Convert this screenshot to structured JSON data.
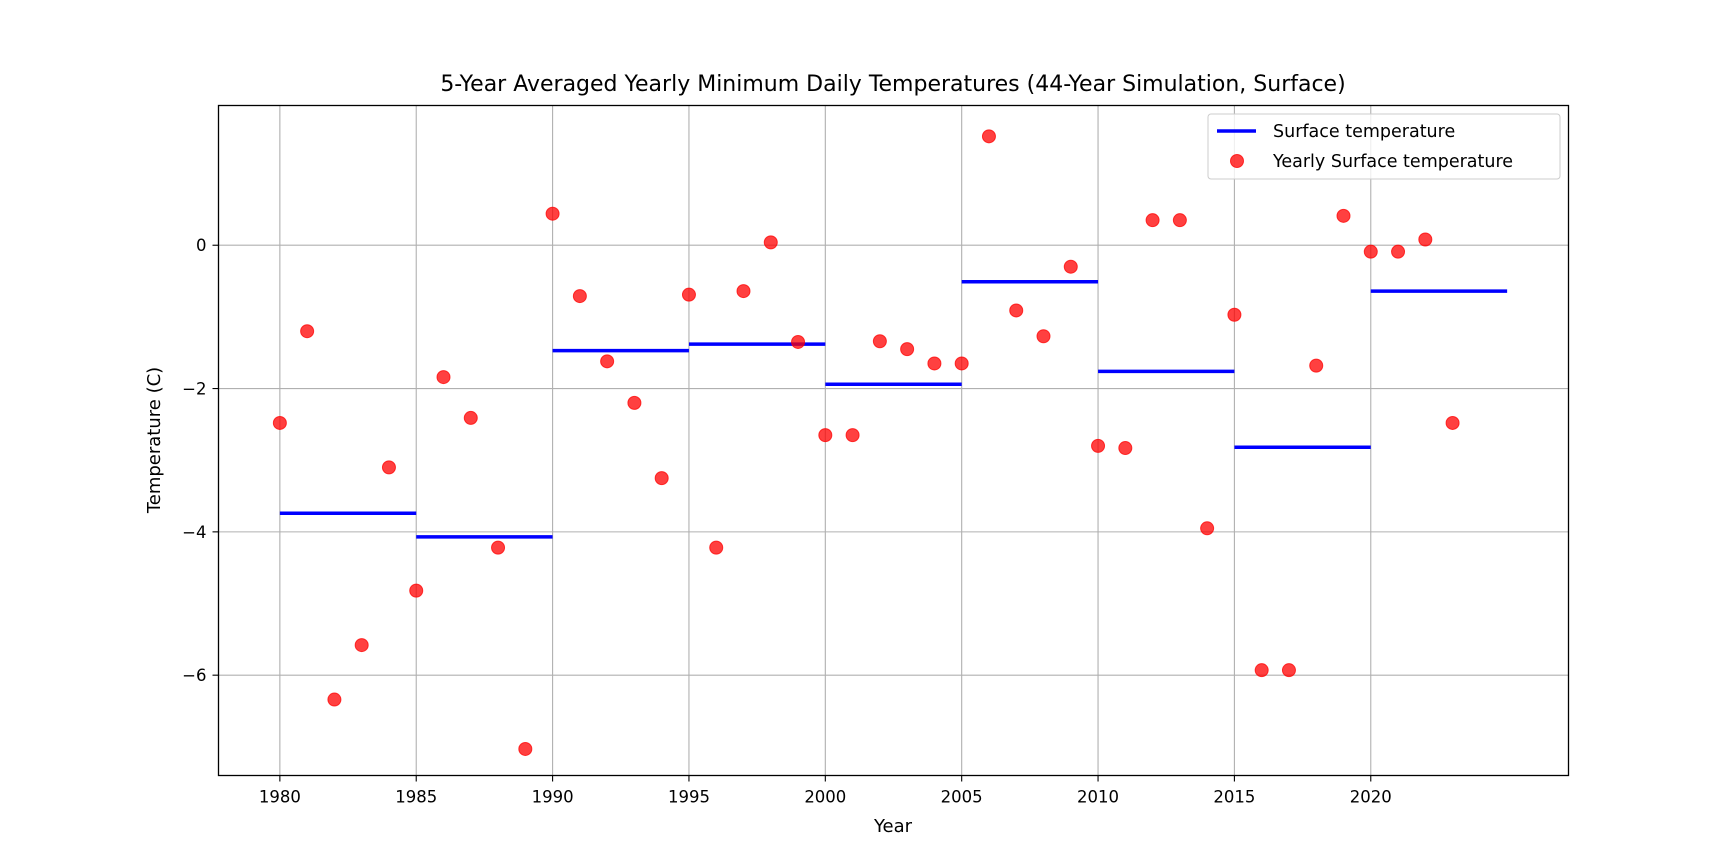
{
  "chart_data": {
    "type": "scatter",
    "title": "5-Year Averaged Yearly Minimum Daily Temperatures (44-Year Simulation, Surface)",
    "xlabel": "Year",
    "ylabel": "Temperature (C)",
    "xlim": [
      1977.75,
      2027.25
    ],
    "ylim": [
      -7.4,
      1.95
    ],
    "xticks": [
      1980,
      1985,
      1990,
      1995,
      2000,
      2005,
      2010,
      2015,
      2020
    ],
    "yticks": [
      0,
      -2,
      -4,
      -6
    ],
    "grid": true,
    "legend_position": "top-right",
    "series": [
      {
        "name": "Surface temperature",
        "kind": "step-line",
        "color": "#0000ff",
        "segments": [
          {
            "x0": 1980,
            "x1": 1985,
            "y": -3.74
          },
          {
            "x0": 1985,
            "x1": 1990,
            "y": -4.07
          },
          {
            "x0": 1990,
            "x1": 1995,
            "y": -1.47
          },
          {
            "x0": 1995,
            "x1": 2000,
            "y": -1.38
          },
          {
            "x0": 2000,
            "x1": 2005,
            "y": -1.94
          },
          {
            "x0": 2005,
            "x1": 2010,
            "y": -0.51
          },
          {
            "x0": 2010,
            "x1": 2015,
            "y": -1.76
          },
          {
            "x0": 2015,
            "x1": 2020,
            "y": -2.82
          },
          {
            "x0": 2020,
            "x1": 2025,
            "y": -0.64
          }
        ]
      },
      {
        "name": "Yearly Surface temperature",
        "kind": "scatter",
        "color": "#ff0000",
        "x": [
          1980,
          1981,
          1982,
          1983,
          1984,
          1985,
          1986,
          1987,
          1988,
          1989,
          1990,
          1991,
          1992,
          1993,
          1994,
          1995,
          1996,
          1997,
          1998,
          1999,
          2000,
          2001,
          2002,
          2003,
          2004,
          2005,
          2006,
          2007,
          2008,
          2009,
          2010,
          2011,
          2012,
          2013,
          2014,
          2015,
          2016,
          2017,
          2018,
          2019,
          2020,
          2021,
          2022,
          2023
        ],
        "y": [
          -2.48,
          -1.2,
          -6.34,
          -5.58,
          -3.1,
          -4.82,
          -1.84,
          -2.41,
          -4.22,
          -7.03,
          0.44,
          -0.71,
          -1.62,
          -2.2,
          -3.25,
          -0.69,
          -4.22,
          -0.64,
          0.04,
          -1.35,
          -2.65,
          -2.65,
          -1.34,
          -1.45,
          -1.65,
          -1.65,
          1.52,
          -0.91,
          -1.27,
          -0.3,
          -2.8,
          -2.83,
          0.35,
          0.35,
          -3.95,
          -0.97,
          -5.93,
          -5.93,
          -1.68,
          0.41,
          -0.09,
          -0.09,
          0.08,
          -2.48
        ]
      }
    ]
  }
}
